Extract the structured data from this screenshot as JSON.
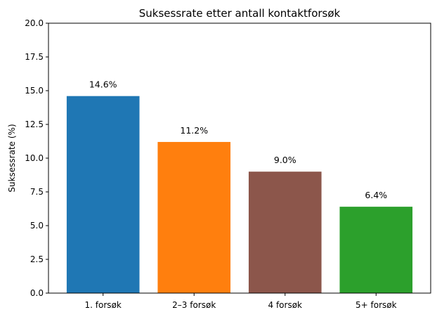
{
  "chart_data": {
    "type": "bar",
    "title": "Suksessrate etter antall kontaktforsøk",
    "xlabel": "",
    "ylabel": "Suksessrate (%)",
    "categories": [
      "1. forsøk",
      "2–3 forsøk",
      "4 forsøk",
      "5+ forsøk"
    ],
    "values": [
      14.6,
      11.2,
      9.0,
      6.4
    ],
    "value_labels": [
      "14.6%",
      "11.2%",
      "9.0%",
      "6.4%"
    ],
    "colors": [
      "#1f77b4",
      "#ff7f0e",
      "#8c564b",
      "#2ca02c"
    ],
    "ylim": [
      0,
      20
    ],
    "yticks": [
      0,
      2.5,
      5,
      7.5,
      10,
      12.5,
      15,
      17.5,
      20
    ],
    "ytick_labels": [
      "0.0",
      "2.5",
      "5.0",
      "7.5",
      "10.0",
      "12.5",
      "15.0",
      "17.5",
      "20.0"
    ],
    "grid": false,
    "legend": "none"
  }
}
